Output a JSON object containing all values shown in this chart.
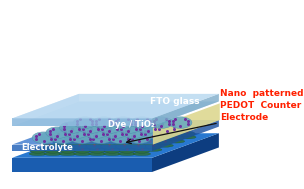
{
  "fig_width": 3.04,
  "fig_height": 1.89,
  "dpi": 100,
  "bg_color": "#ffffff",
  "fto_glass_label": "FTO glass",
  "fto_glass_label_color": "#ffffff",
  "fto_glass_label_fontsize": 6.5,
  "dye_tio2_label": "Dye / TiO₂",
  "dye_tio2_label_color": "#ffffff",
  "dye_tio2_label_fontsize": 6,
  "electrolyte_label": "Electrolyte",
  "electrolyte_label_color": "#ffffff",
  "electrolyte_label_fontsize": 6,
  "nano_label_line1": "Nano  patterned",
  "nano_label_line2": "PEDOT  Counter",
  "nano_label_line3": "Electrode",
  "nano_label_color": "#ff2000",
  "nano_label_fontsize": 6.5,
  "top_glass_top_color": "#b8d8f0",
  "top_glass_front_color": "#8ab8dc",
  "top_glass_side_color": "#7aaac8",
  "top_glass_bottom_color": "#9ec8e8",
  "bottom_plate_front": "#1a5db0",
  "bottom_plate_top": "#2878d0",
  "bottom_plate_side": "#0d3d80",
  "bottom_plate_bg": "#1550a0",
  "electrolyte_front": "#2060b8",
  "electrolyte_top": "#3575cc",
  "tio2_color": "#6aaac0",
  "tio2_edge": "#4888a8",
  "dye_color": "#7030a0",
  "red_dot_color": "#cc2200",
  "pedot_color": "#2d6e42",
  "pedot_edge": "#1a4a2a",
  "yellow_color": "#ddd890",
  "arrow_color": "#111111"
}
